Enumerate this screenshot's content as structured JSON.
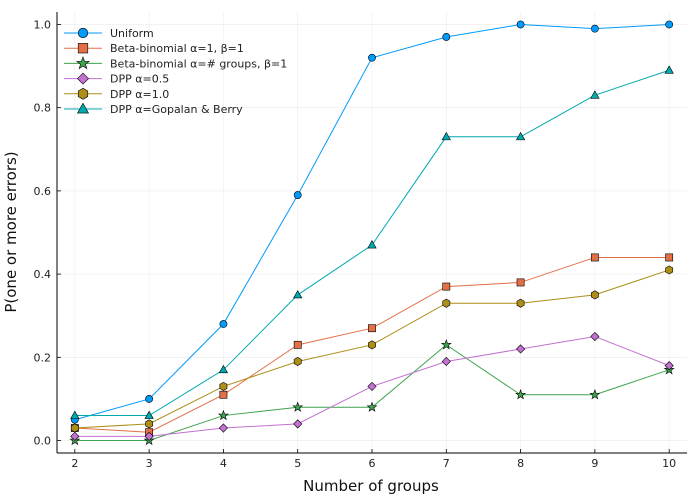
{
  "chart_data": {
    "type": "line",
    "title": "",
    "xlabel": "Number of groups",
    "ylabel": "P(one or more errors)",
    "x": [
      2,
      3,
      4,
      5,
      6,
      7,
      8,
      9,
      10
    ],
    "xlim": [
      1.76,
      10.24
    ],
    "ylim": [
      -0.03,
      1.03
    ],
    "xticks": [
      2,
      3,
      4,
      5,
      6,
      7,
      8,
      9,
      10
    ],
    "yticks": [
      0.0,
      0.2,
      0.4,
      0.6,
      0.8,
      1.0
    ],
    "xtick_labels": [
      "2",
      "3",
      "4",
      "5",
      "6",
      "7",
      "8",
      "9",
      "10"
    ],
    "ytick_labels": [
      "0.0",
      "0.2",
      "0.4",
      "0.6",
      "0.8",
      "1.0"
    ],
    "grid": true,
    "legend_position": "top-left",
    "series": [
      {
        "name": "Uniform",
        "color": "#009AFA",
        "marker": "circle",
        "values": [
          0.05,
          0.1,
          0.28,
          0.59,
          0.92,
          0.97,
          1.0,
          0.99,
          1.0
        ]
      },
      {
        "name": "Beta-binomial α=1, β=1",
        "color": "#E36F47",
        "marker": "square",
        "values": [
          0.03,
          0.02,
          0.11,
          0.23,
          0.27,
          0.37,
          0.38,
          0.44,
          0.44
        ]
      },
      {
        "name": "Beta-binomial α=# groups, β=1",
        "color": "#3EA44E",
        "marker": "star",
        "values": [
          0.0,
          0.0,
          0.06,
          0.08,
          0.08,
          0.23,
          0.11,
          0.11,
          0.17
        ]
      },
      {
        "name": "DPP α=0.5",
        "color": "#C371D2",
        "marker": "diamond",
        "values": [
          0.01,
          0.01,
          0.03,
          0.04,
          0.13,
          0.19,
          0.22,
          0.25,
          0.18
        ]
      },
      {
        "name": "DPP α=1.0",
        "color": "#AC8E18",
        "marker": "hexagon",
        "values": [
          0.03,
          0.04,
          0.13,
          0.19,
          0.23,
          0.33,
          0.33,
          0.35,
          0.41
        ]
      },
      {
        "name": "DPP α=Gopalan & Berry",
        "color": "#00A9AD",
        "marker": "triangle",
        "values": [
          0.06,
          0.06,
          0.17,
          0.35,
          0.47,
          0.73,
          0.73,
          0.83,
          0.89
        ]
      }
    ]
  }
}
